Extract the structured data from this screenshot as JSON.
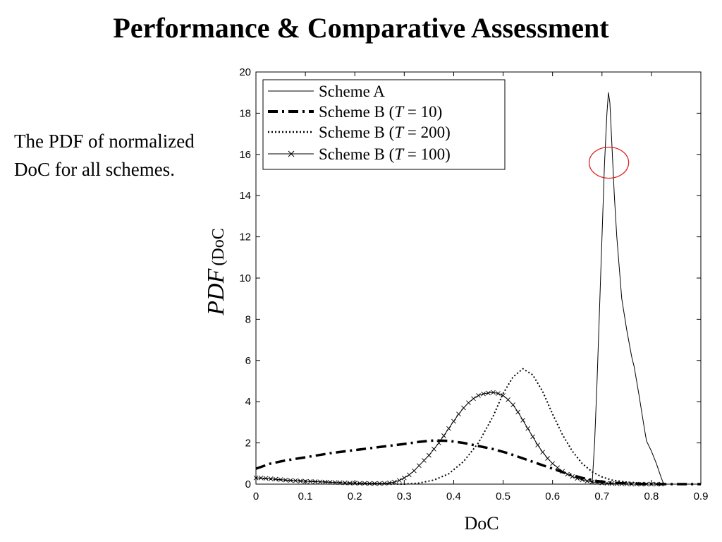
{
  "slide": {
    "title": "Performance & Comparative Assessment",
    "caption": "The PDF of normalized DoC for all schemes."
  },
  "chart_data": {
    "type": "line",
    "title": "",
    "xlabel": "DoC",
    "ylabel_italic": "PDF",
    "ylabel_rest": "DoC",
    "xlim": [
      0,
      0.9
    ],
    "ylim": [
      0,
      20
    ],
    "xticks": [
      "0",
      "0.1",
      "0.2",
      "0.3",
      "0.4",
      "0.5",
      "0.6",
      "0.7",
      "0.8",
      "0.9"
    ],
    "yticks": [
      "0",
      "2",
      "4",
      "6",
      "8",
      "10",
      "12",
      "14",
      "16",
      "18",
      "20"
    ],
    "xtick_values": [
      0,
      0.1,
      0.2,
      0.3,
      0.4,
      0.5,
      0.6,
      0.7,
      0.8,
      0.9
    ],
    "ytick_values": [
      0,
      2,
      4,
      6,
      8,
      10,
      12,
      14,
      16,
      18,
      20
    ],
    "grid": false,
    "legend_position": "top-left",
    "highlight_circle": {
      "x": 0.714,
      "y": 15.6,
      "color": "#e02020"
    },
    "series": [
      {
        "name": "Scheme A",
        "style": "solid",
        "x": [
          0.68,
          0.685,
          0.69,
          0.695,
          0.7,
          0.705,
          0.71,
          0.713,
          0.716,
          0.72,
          0.725,
          0.73,
          0.735,
          0.74,
          0.75,
          0.76,
          0.765,
          0.775,
          0.785,
          0.79,
          0.8,
          0.81,
          0.82,
          0.825
        ],
        "y": [
          0.0,
          2.0,
          5.0,
          8.5,
          12.0,
          15.5,
          18.0,
          19.0,
          18.5,
          16.5,
          14.0,
          12.0,
          10.5,
          9.0,
          7.5,
          6.2,
          5.7,
          4.3,
          2.8,
          2.1,
          1.6,
          1.0,
          0.3,
          0.0
        ]
      },
      {
        "name": "Scheme B (T = 10)",
        "label_plain": "Scheme B (",
        "label_var": "T",
        "label_eq": " = 10)",
        "style": "dashdot",
        "x": [
          0.0,
          0.03,
          0.06,
          0.1,
          0.15,
          0.2,
          0.25,
          0.3,
          0.33,
          0.36,
          0.39,
          0.42,
          0.45,
          0.48,
          0.51,
          0.54,
          0.57,
          0.6,
          0.63,
          0.66,
          0.69,
          0.72,
          0.75,
          0.78,
          0.81,
          0.85,
          0.88,
          0.9
        ],
        "y": [
          0.75,
          1.0,
          1.15,
          1.3,
          1.5,
          1.65,
          1.8,
          1.95,
          2.05,
          2.12,
          2.1,
          2.0,
          1.85,
          1.7,
          1.5,
          1.25,
          1.0,
          0.75,
          0.5,
          0.3,
          0.15,
          0.07,
          0.03,
          0.01,
          0.0,
          0.0,
          0.0,
          0.0
        ]
      },
      {
        "name": "Scheme B (T = 200)",
        "label_plain": "Scheme B (",
        "label_var": "T",
        "label_eq": " = 200)",
        "style": "dotted",
        "x": [
          0.0,
          0.05,
          0.1,
          0.15,
          0.2,
          0.25,
          0.3,
          0.33,
          0.36,
          0.39,
          0.42,
          0.45,
          0.48,
          0.5,
          0.52,
          0.54,
          0.56,
          0.58,
          0.6,
          0.62,
          0.64,
          0.66,
          0.68,
          0.7,
          0.72,
          0.75,
          0.78,
          0.8,
          0.82
        ],
        "y": [
          0.3,
          0.2,
          0.15,
          0.1,
          0.05,
          0.02,
          0.0,
          0.05,
          0.2,
          0.5,
          1.1,
          2.0,
          3.3,
          4.4,
          5.2,
          5.6,
          5.3,
          4.5,
          3.4,
          2.4,
          1.6,
          1.0,
          0.6,
          0.35,
          0.2,
          0.1,
          0.05,
          0.02,
          0.0
        ]
      },
      {
        "name": "Scheme B (T = 100)",
        "label_plain": "Scheme B (",
        "label_var": "T",
        "label_eq": " = 100)",
        "style": "solid-x",
        "x": [
          0.0,
          0.01,
          0.02,
          0.03,
          0.04,
          0.05,
          0.06,
          0.07,
          0.08,
          0.09,
          0.1,
          0.11,
          0.12,
          0.13,
          0.14,
          0.15,
          0.16,
          0.17,
          0.18,
          0.19,
          0.2,
          0.21,
          0.22,
          0.23,
          0.24,
          0.25,
          0.26,
          0.27,
          0.28,
          0.29,
          0.3,
          0.31,
          0.32,
          0.33,
          0.34,
          0.35,
          0.36,
          0.37,
          0.38,
          0.39,
          0.4,
          0.41,
          0.42,
          0.43,
          0.44,
          0.45,
          0.46,
          0.47,
          0.48,
          0.49,
          0.5,
          0.51,
          0.52,
          0.53,
          0.54,
          0.55,
          0.56,
          0.57,
          0.58,
          0.59,
          0.6,
          0.61,
          0.62,
          0.63,
          0.64,
          0.65,
          0.66,
          0.67,
          0.68,
          0.69,
          0.7,
          0.71,
          0.72,
          0.73,
          0.74,
          0.75,
          0.76,
          0.77,
          0.78,
          0.79,
          0.8,
          0.81,
          0.82
        ],
        "y": [
          0.3,
          0.3,
          0.28,
          0.26,
          0.24,
          0.22,
          0.2,
          0.18,
          0.17,
          0.15,
          0.14,
          0.13,
          0.12,
          0.11,
          0.1,
          0.09,
          0.08,
          0.07,
          0.06,
          0.05,
          0.05,
          0.04,
          0.04,
          0.03,
          0.03,
          0.03,
          0.04,
          0.06,
          0.1,
          0.18,
          0.3,
          0.45,
          0.65,
          0.9,
          1.15,
          1.4,
          1.7,
          2.0,
          2.35,
          2.7,
          3.05,
          3.4,
          3.7,
          3.95,
          4.15,
          4.3,
          4.38,
          4.42,
          4.45,
          4.4,
          4.3,
          4.1,
          3.85,
          3.5,
          3.1,
          2.7,
          2.3,
          1.9,
          1.55,
          1.25,
          1.0,
          0.8,
          0.62,
          0.48,
          0.37,
          0.28,
          0.21,
          0.15,
          0.11,
          0.08,
          0.06,
          0.04,
          0.03,
          0.02,
          0.01,
          0.01,
          0.0,
          0.0,
          0.0,
          0.0,
          0.0,
          0.0,
          0.0
        ]
      }
    ]
  }
}
